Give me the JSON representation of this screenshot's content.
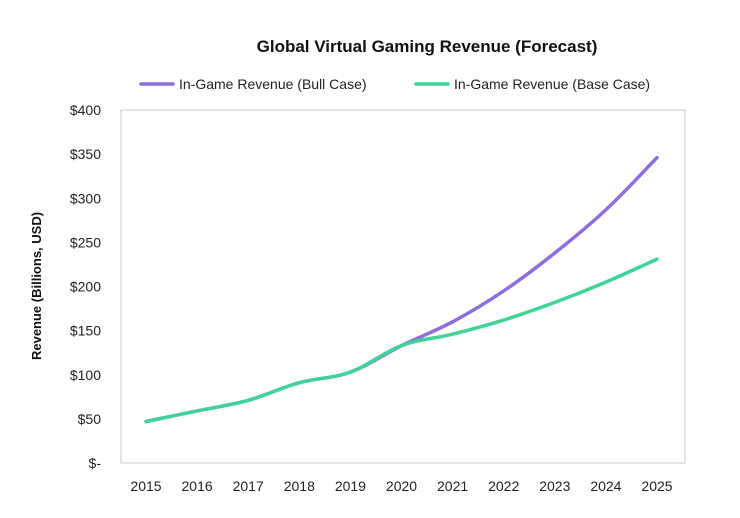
{
  "chart_data": {
    "type": "line",
    "title": "Global Virtual Gaming Revenue (Forecast)",
    "xlabel": "",
    "ylabel": "Revenue (Billions, USD)",
    "categories": [
      "2015",
      "2016",
      "2017",
      "2018",
      "2019",
      "2020",
      "2021",
      "2022",
      "2023",
      "2024",
      "2025"
    ],
    "series": [
      {
        "name": "In-Game Revenue (Bull Case)",
        "color": "#8b6fe0",
        "values": [
          47,
          59,
          71,
          91,
          103,
          133,
          160,
          195,
          238,
          287,
          346
        ]
      },
      {
        "name": "In-Game Revenue (Base Case)",
        "color": "#3fd39a",
        "values": [
          47,
          59,
          71,
          91,
          103,
          133,
          146,
          162,
          182,
          205,
          231
        ]
      }
    ],
    "ylim": [
      0,
      400
    ],
    "y_ticks": [
      {
        "value": 0,
        "label": "$-"
      },
      {
        "value": 50,
        "label": "$50"
      },
      {
        "value": 100,
        "label": "$100"
      },
      {
        "value": 150,
        "label": "$150"
      },
      {
        "value": 200,
        "label": "$200"
      },
      {
        "value": 250,
        "label": "$250"
      },
      {
        "value": 300,
        "label": "$300"
      },
      {
        "value": 350,
        "label": "$350"
      },
      {
        "value": 400,
        "label": "$400"
      }
    ],
    "grid": false,
    "legend_position": "top"
  }
}
